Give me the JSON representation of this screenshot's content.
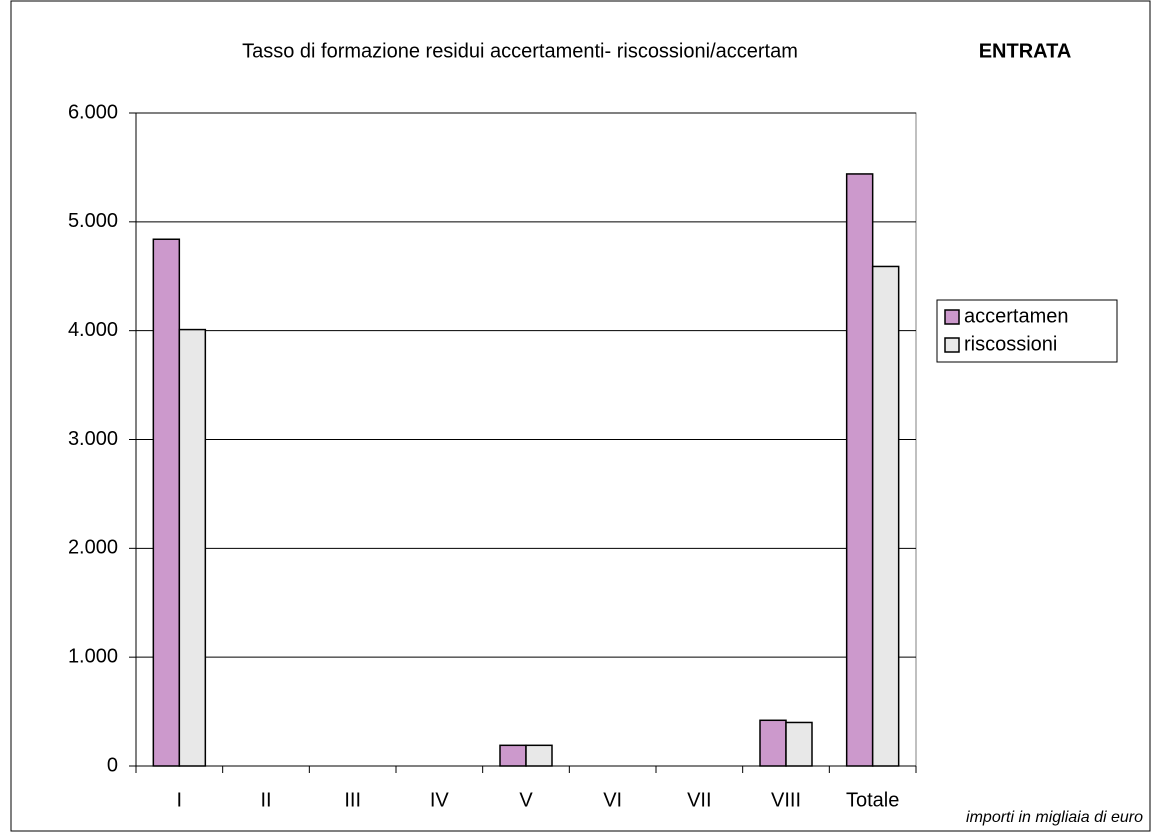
{
  "chart_data": {
    "type": "bar",
    "title": "Tasso di formazione residui accertamenti- riscossioni/accertam",
    "subtitle": "ENTRATA",
    "note": "importi in migliaia di euro",
    "categories": [
      "I",
      "II",
      "III",
      "IV",
      "V",
      "VI",
      "VII",
      "VIII",
      "Totale"
    ],
    "series": [
      {
        "name": "accertamen",
        "color": "#cc99cc",
        "values": [
          4840,
          0,
          0,
          0,
          190,
          0,
          0,
          420,
          5440
        ]
      },
      {
        "name": "riscossioni",
        "color": "#e8e8e8",
        "values": [
          4010,
          0,
          0,
          0,
          190,
          0,
          0,
          400,
          4590
        ]
      }
    ],
    "ylim": [
      0,
      6000
    ],
    "yticks": [
      0,
      {
        "value": 1000,
        "label": "1.000"
      },
      {
        "value": 2000,
        "label": "2.000"
      },
      {
        "value": 3000,
        "label": "3.000"
      },
      {
        "value": 4000,
        "label": "4.000"
      },
      {
        "value": 5000,
        "label": "5.000"
      },
      {
        "value": 6000,
        "label": "6.000"
      }
    ],
    "grid": true,
    "legend": "right"
  }
}
